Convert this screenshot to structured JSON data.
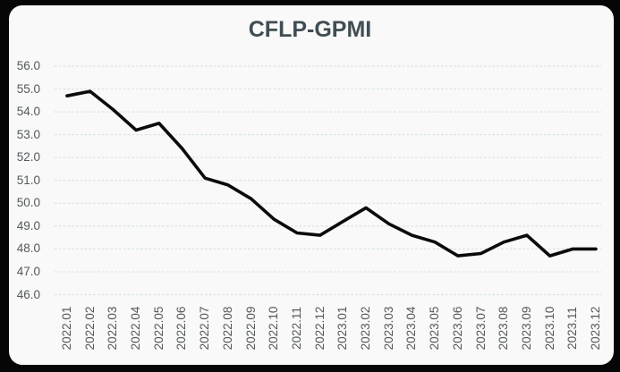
{
  "colors": {
    "frame_background": "#060606",
    "card_background": "#f8f9f8",
    "title": "#404d54",
    "axis_labels": "#54595d",
    "gridline": "#d9e4e6",
    "series_line": "#0b0b0b"
  },
  "chart_data": {
    "type": "line",
    "title": "CFLP-GPMI",
    "categories": [
      "2022.01",
      "2022.02",
      "2022.03",
      "2022.04",
      "2022.05",
      "2022.06",
      "2022.07",
      "2022.08",
      "2022.09",
      "2022.10",
      "2022.11",
      "2022.12",
      "2023.01",
      "2023.02",
      "2023.03",
      "2023.04",
      "2023.05",
      "2023.06",
      "2023.07",
      "2023.08",
      "2023.09",
      "2023.10",
      "2023.11",
      "2023.12"
    ],
    "series": [
      {
        "name": "CFLP-GPMI",
        "values": [
          54.7,
          54.9,
          54.1,
          53.2,
          53.5,
          52.4,
          51.1,
          50.8,
          50.2,
          49.3,
          48.7,
          48.6,
          49.2,
          49.8,
          49.1,
          48.6,
          48.3,
          47.7,
          47.8,
          48.3,
          48.6,
          47.7,
          48.0,
          48.0
        ]
      }
    ],
    "ylim": [
      46.0,
      56.0
    ],
    "ytick_step": 1.0,
    "ytick_labels": [
      "56.0",
      "55.0",
      "54.0",
      "53.0",
      "52.0",
      "51.0",
      "50.0",
      "49.0",
      "48.0",
      "47.0",
      "46.0"
    ],
    "xlabel": "",
    "ylabel": "",
    "grid": "horizontal-dashed",
    "legend_position": "none",
    "x_tick_rotation": 90,
    "marker": "none"
  }
}
